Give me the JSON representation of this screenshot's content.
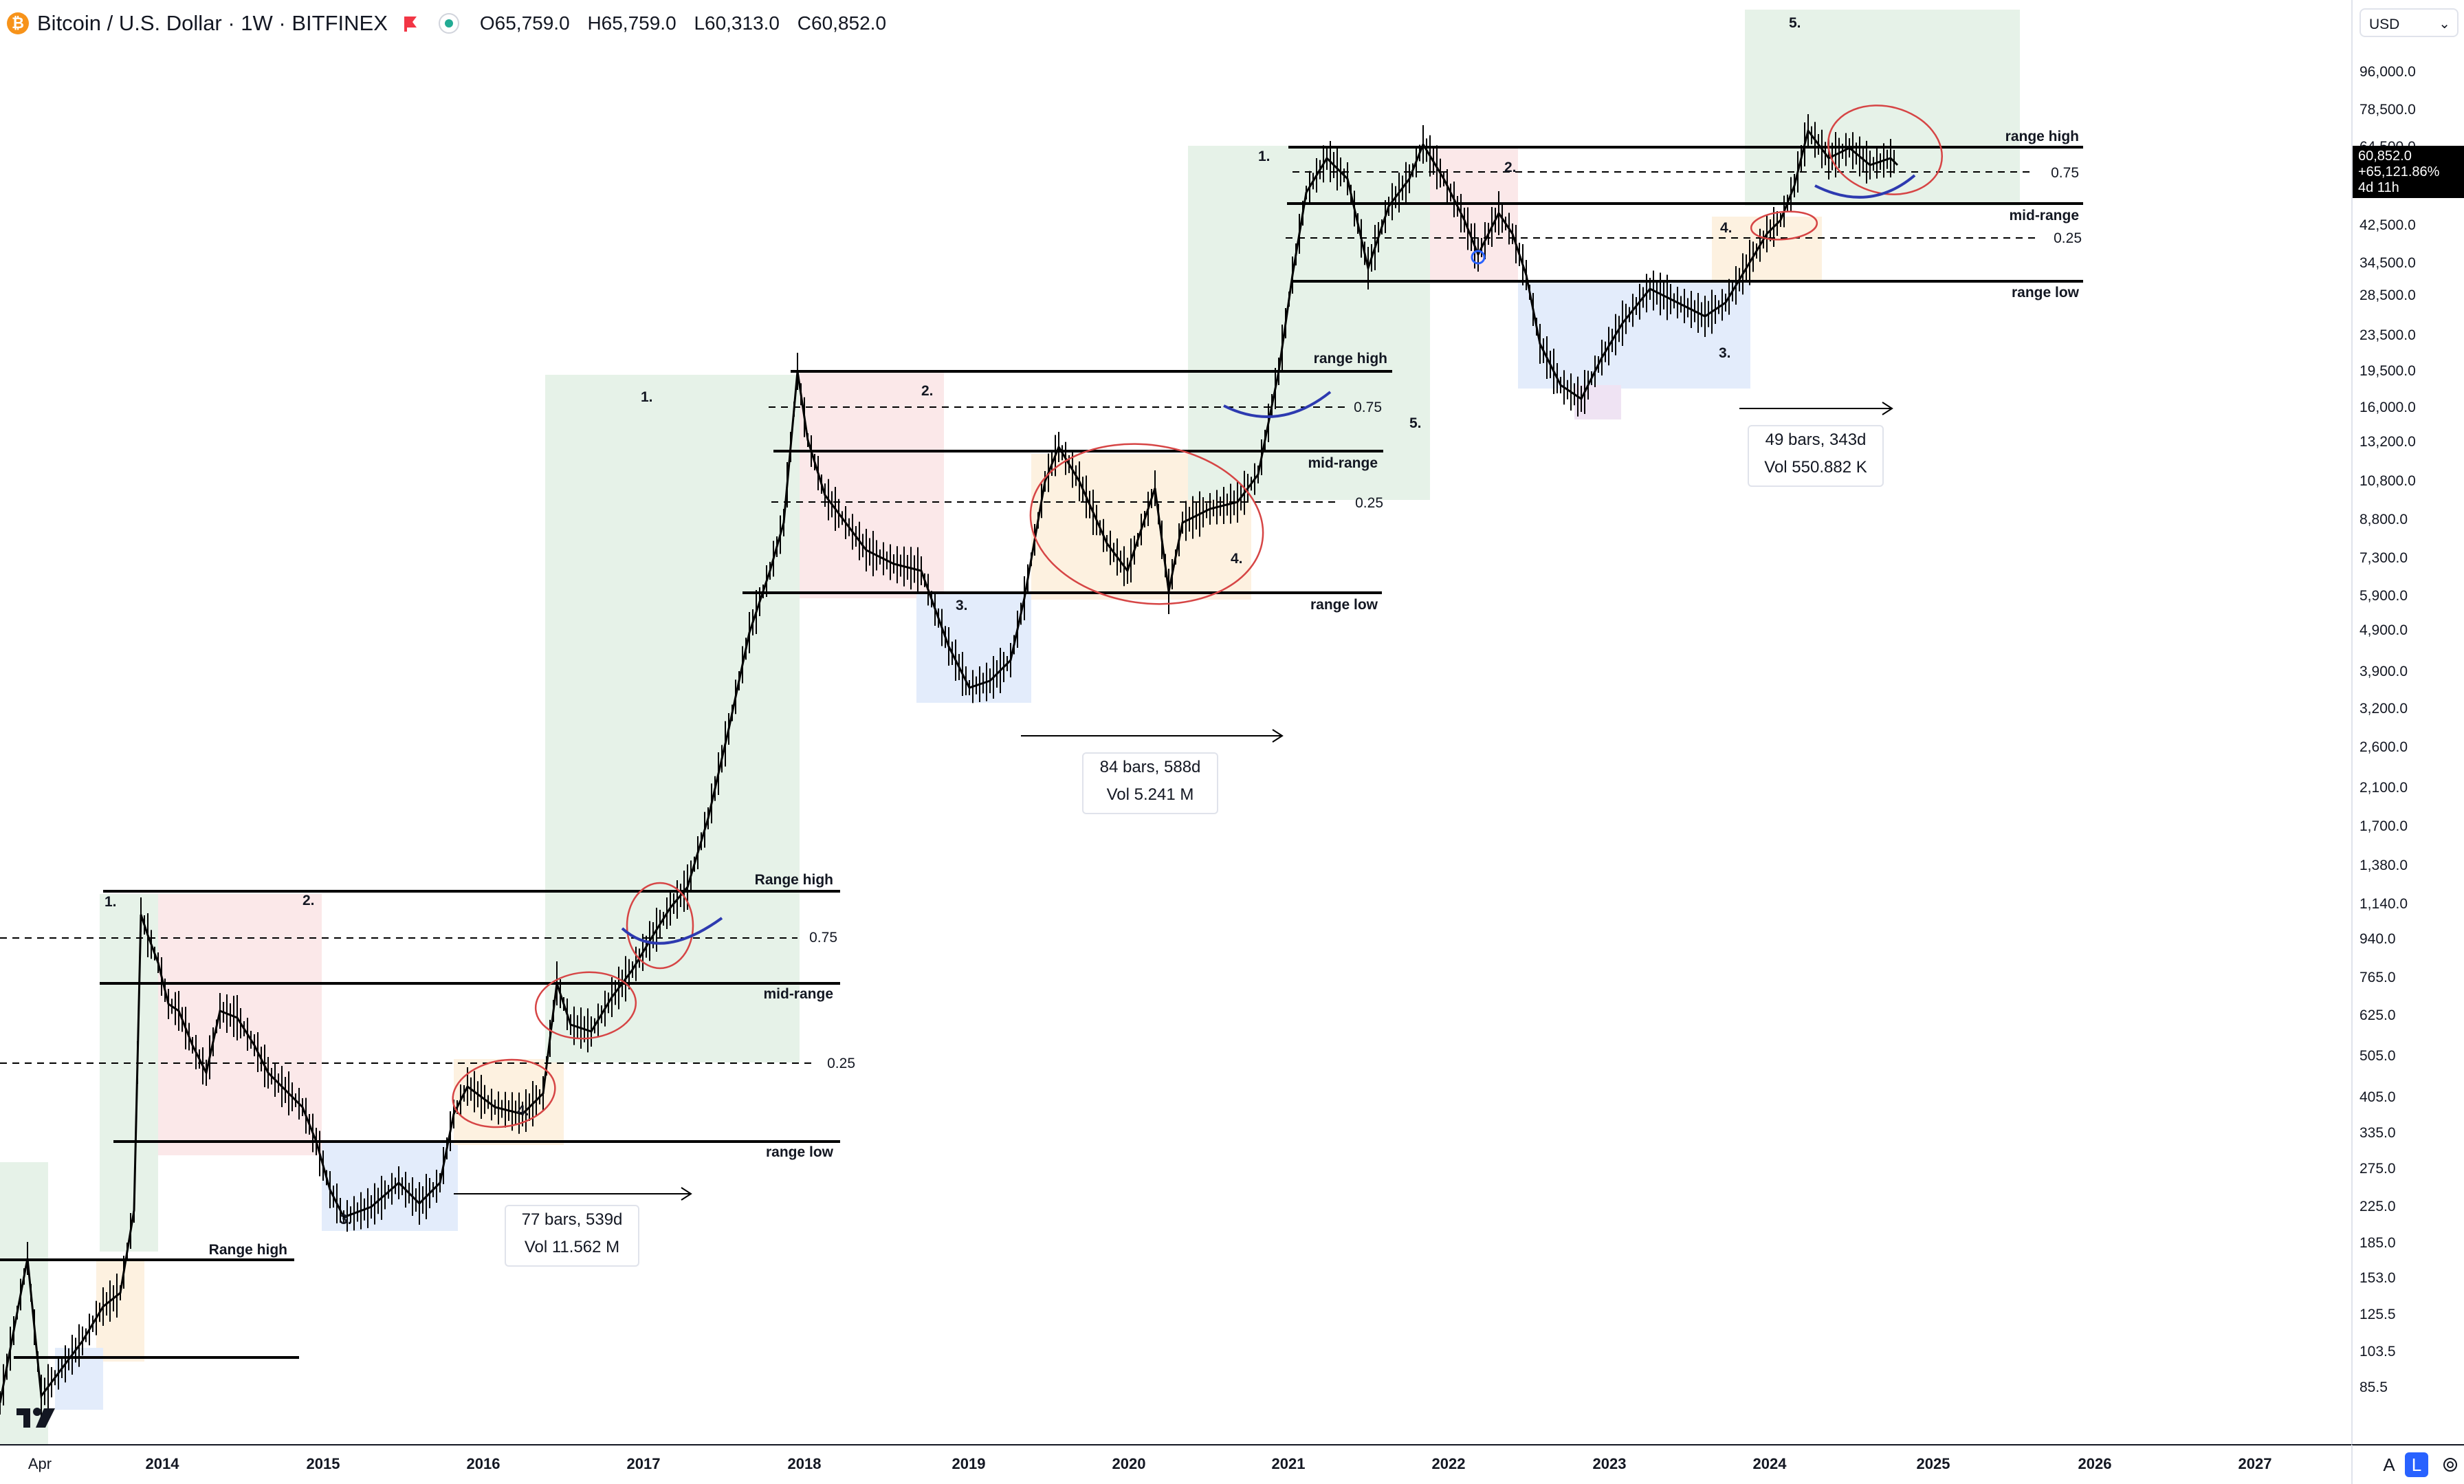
{
  "header": {
    "symbol_title": "Bitcoin / U.S. Dollar · 1W · BITFINEX",
    "coin_glyph": "₿",
    "open": "O65,759.0",
    "high": "H65,759.0",
    "low": "L60,313.0",
    "close": "C60,852.0"
  },
  "price_axis": {
    "currency": "USD",
    "ticks": [
      "96,000.0",
      "78,500.0",
      "64,500.0",
      "42,500.0",
      "34,500.0",
      "28,500.0",
      "23,500.0",
      "19,500.0",
      "16,000.0",
      "13,200.0",
      "10,800.0",
      "8,800.0",
      "7,300.0",
      "5,900.0",
      "4,900.0",
      "3,900.0",
      "3,200.0",
      "2,600.0",
      "2,100.0",
      "1,700.0",
      "1,380.0",
      "1,140.0",
      "940.0",
      "765.0",
      "625.0",
      "505.0",
      "405.0",
      "335.0",
      "275.0",
      "225.0",
      "185.0",
      "153.0",
      "125.5",
      "103.5",
      "85.5"
    ],
    "last_price": "60,852.0",
    "change": "+65,121.86%",
    "countdown": "4d 11h"
  },
  "time_axis": {
    "labels": [
      "Apr",
      "2014",
      "2015",
      "2016",
      "2017",
      "2018",
      "2019",
      "2020",
      "2021",
      "2022",
      "2023",
      "2024",
      "2025",
      "2026",
      "2027"
    ]
  },
  "corner": {
    "auto": "A",
    "log": "L"
  },
  "annotations": {
    "c1_range_high": "Range high",
    "c1_range_high2": "Range high",
    "c1_mid": "mid-range",
    "c1_low": "range low",
    "c1_075": "0.75",
    "c1_025": "0.25",
    "c2_range_high": "range high",
    "c2_mid": "mid-range",
    "c2_low": "range low",
    "c2_075": "0.75",
    "c2_025": "0.25",
    "c3_range_high": "range high",
    "c3_mid": "mid-range",
    "c3_low": "range low",
    "c3_075": "0.75",
    "c3_025": "0.25",
    "n1": "1.",
    "n2": "2.",
    "n3": "3.",
    "n4": "4.",
    "n5": "5."
  },
  "measures": [
    {
      "line1": "77 bars, 539d",
      "line2": "Vol 11.562 M"
    },
    {
      "line1": "84 bars, 588d",
      "line2": "Vol 5.241 M"
    },
    {
      "line1": "49 bars, 343d",
      "line2": "Vol 550.882 K"
    }
  ],
  "colors": {
    "green_zone": "#e6f2e8",
    "red_zone": "#fbe8e9",
    "blue_zone": "#e3ecfb",
    "orange_zone": "#fdf1e0",
    "purple_zone": "#efe3f3",
    "circle": "#d64545",
    "arc": "#2d3ab0"
  }
}
